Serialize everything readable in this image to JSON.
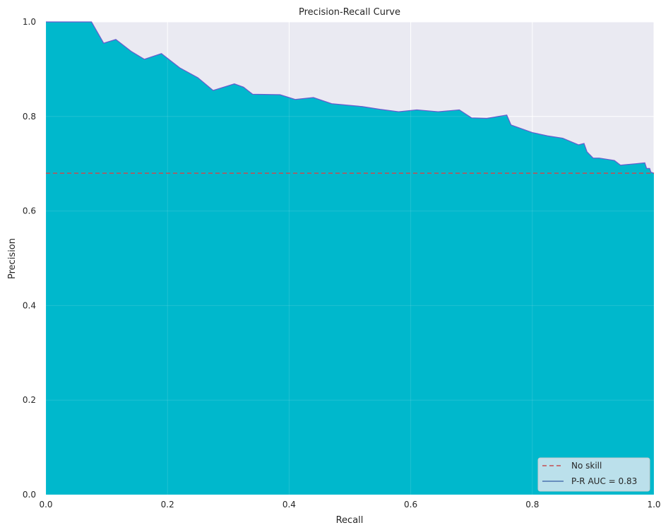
{
  "colors": {
    "background": "#eaeaf2",
    "grid": "#ffffff",
    "fill": "#00b8cc",
    "curve": "#6a5acd",
    "no_skill": "#c44e52",
    "auc_line": "#4c72b0"
  },
  "chart_data": {
    "type": "area",
    "title": "Precision-Recall Curve",
    "xlabel": "Recall",
    "ylabel": "Precision",
    "xlim": [
      0.0,
      1.0
    ],
    "ylim": [
      0.0,
      1.0
    ],
    "x_ticks": [
      "0.0",
      "0.2",
      "0.4",
      "0.6",
      "0.8",
      "1.0"
    ],
    "y_ticks": [
      "0.0",
      "0.2",
      "0.4",
      "0.6",
      "0.8",
      "1.0"
    ],
    "grid": true,
    "legend_position": "bottom-right",
    "legend": [
      "No skill",
      "P-R AUC = 0.83"
    ],
    "series": [
      {
        "name": "No skill",
        "style": "dashed",
        "x": [
          0.0,
          1.0
        ],
        "y": [
          0.68,
          0.68
        ]
      },
      {
        "name": "P-R AUC = 0.83",
        "style": "solid-filled",
        "x": [
          0.0,
          0.075,
          0.095,
          0.115,
          0.14,
          0.162,
          0.19,
          0.22,
          0.25,
          0.275,
          0.31,
          0.325,
          0.34,
          0.385,
          0.41,
          0.44,
          0.47,
          0.52,
          0.55,
          0.58,
          0.61,
          0.645,
          0.68,
          0.7,
          0.725,
          0.758,
          0.765,
          0.8,
          0.825,
          0.85,
          0.876,
          0.885,
          0.89,
          0.9,
          0.91,
          0.935,
          0.945,
          0.97,
          0.985,
          0.988,
          0.993,
          0.995,
          1.0
        ],
        "y": [
          1.0,
          1.0,
          0.955,
          0.963,
          0.938,
          0.921,
          0.933,
          0.903,
          0.882,
          0.855,
          0.869,
          0.862,
          0.847,
          0.846,
          0.836,
          0.84,
          0.827,
          0.821,
          0.815,
          0.81,
          0.814,
          0.81,
          0.814,
          0.797,
          0.796,
          0.803,
          0.782,
          0.766,
          0.759,
          0.754,
          0.74,
          0.743,
          0.725,
          0.712,
          0.712,
          0.707,
          0.697,
          0.7,
          0.702,
          0.69,
          0.69,
          0.682,
          0.68
        ]
      }
    ]
  }
}
